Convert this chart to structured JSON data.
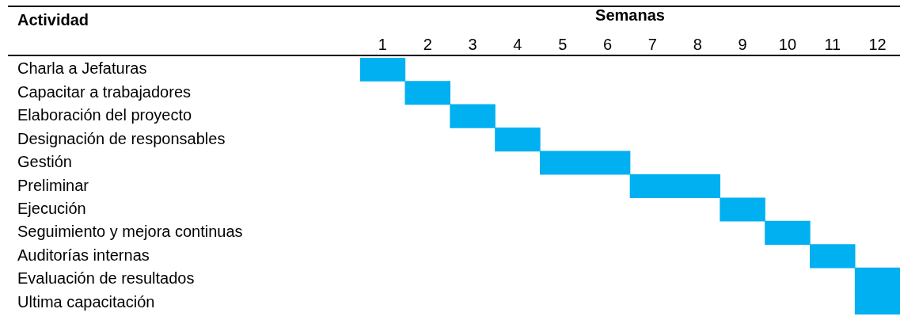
{
  "chart_data": {
    "type": "bar",
    "orientation": "horizontal",
    "xlabel": "Semanas",
    "ylabel": "Actividad",
    "categories": [
      "Charla a Jefaturas",
      "Capacitar a trabajadores",
      "Elaboración del proyecto",
      "Designación de responsables",
      "Gestión",
      "Preliminar",
      "Ejecución",
      "Seguimiento y mejora continuas",
      "Auditorías internas",
      "Evaluación de resultados",
      "Ultima capacitación"
    ],
    "values": [
      1,
      1,
      1,
      1,
      2,
      2,
      1,
      1,
      1,
      1,
      1
    ],
    "base": [
      0.5,
      1.5,
      2.5,
      3.5,
      4.5,
      6.5,
      8.5,
      9.5,
      10.5,
      11.5,
      11.5
    ],
    "color": "#00b0f0",
    "xlim": [
      0.5,
      12.5
    ],
    "xticks": [
      1,
      2,
      3,
      4,
      5,
      6,
      7,
      8,
      9,
      10,
      11,
      12
    ],
    "grid": false,
    "legend": false
  }
}
